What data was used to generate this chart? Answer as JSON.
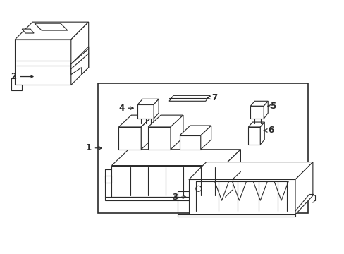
{
  "bg_color": "#ffffff",
  "line_color": "#2a2a2a",
  "line_width": 0.8,
  "fig_width": 4.89,
  "fig_height": 3.6,
  "dpi": 100
}
